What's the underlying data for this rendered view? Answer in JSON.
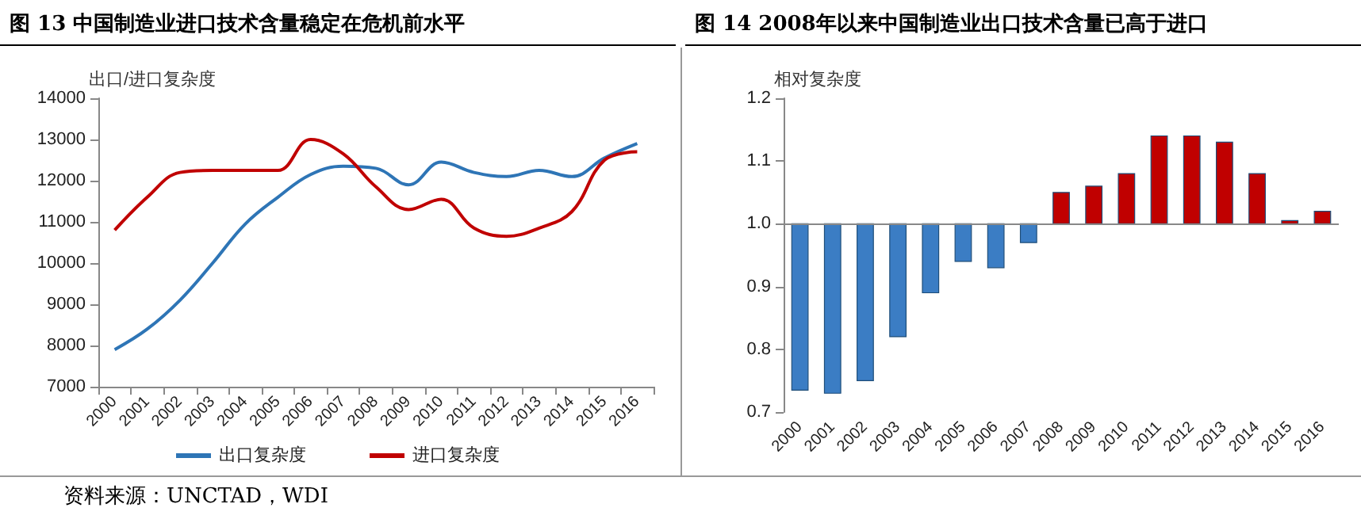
{
  "chart_data": [
    {
      "type": "line",
      "title": "图 13   中国制造业进口技术含量稳定在危机前水平",
      "ylabel": "出口/进口复杂度",
      "categories": [
        "2000",
        "2001",
        "2002",
        "2003",
        "2004",
        "2005",
        "2006",
        "2007",
        "2008",
        "2009",
        "2010",
        "2011",
        "2012",
        "2013",
        "2014",
        "2015",
        "2016"
      ],
      "series": [
        {
          "name": "出口复杂度",
          "color": "#2e75b6",
          "values": [
            7900,
            8400,
            9100,
            10000,
            10950,
            11600,
            12150,
            12350,
            12300,
            11900,
            12450,
            12200,
            12100,
            12250,
            12100,
            12550,
            12900
          ]
        },
        {
          "name": "进口复杂度",
          "color": "#c00000",
          "values": [
            10800,
            11600,
            12200,
            12250,
            12250,
            12250,
            13000,
            12650,
            11850,
            11300,
            11550,
            10850,
            10650,
            10850,
            11250,
            12500,
            12700
          ]
        }
      ],
      "ylim": [
        7000,
        14000
      ],
      "yticks": [
        7000,
        8000,
        9000,
        10000,
        11000,
        12000,
        13000,
        14000
      ],
      "grid": false,
      "legend": "bottom",
      "marker": "none",
      "line_style": "solid",
      "annotations": [
        "资料来源：UNCTAD，WDI"
      ]
    },
    {
      "type": "bar",
      "title": "图 14   2008年以来中国制造业出口技术含量已高于进口",
      "ylabel": "相对复杂度",
      "categories": [
        "2000",
        "2001",
        "2002",
        "2003",
        "2004",
        "2005",
        "2006",
        "2007",
        "2008",
        "2009",
        "2010",
        "2011",
        "2012",
        "2013",
        "2014",
        "2015",
        "2016"
      ],
      "base": [
        1,
        1,
        1,
        1,
        1,
        1,
        1,
        1,
        1,
        1,
        1,
        1,
        1,
        1,
        1,
        1,
        1
      ],
      "values": [
        -0.265,
        -0.27,
        -0.25,
        -0.18,
        -0.11,
        -0.06,
        -0.07,
        -0.03,
        0.05,
        0.06,
        0.08,
        0.14,
        0.14,
        0.13,
        0.08,
        0.005,
        0.02
      ],
      "colors": [
        "#3b7dc4",
        "#3b7dc4",
        "#3b7dc4",
        "#3b7dc4",
        "#3b7dc4",
        "#3b7dc4",
        "#3b7dc4",
        "#3b7dc4",
        "#c00000",
        "#c00000",
        "#c00000",
        "#c00000",
        "#c00000",
        "#c00000",
        "#c00000",
        "#c00000",
        "#c00000"
      ],
      "ylim": [
        0.7,
        1.2
      ],
      "yticks": [
        {
          "value": 0.7,
          "label": "0.7"
        },
        {
          "value": 0.8,
          "label": "0.8"
        },
        {
          "value": 0.9,
          "label": "0.9"
        },
        {
          "value": 1,
          "label": "1.0"
        },
        {
          "value": 1.1,
          "label": "1.1"
        },
        {
          "value": 1.2,
          "label": "1.2"
        }
      ],
      "ref_lines": [
        {
          "axis": "y",
          "value": 1,
          "color": "#888888"
        }
      ],
      "grid": false,
      "legend": false
    }
  ]
}
